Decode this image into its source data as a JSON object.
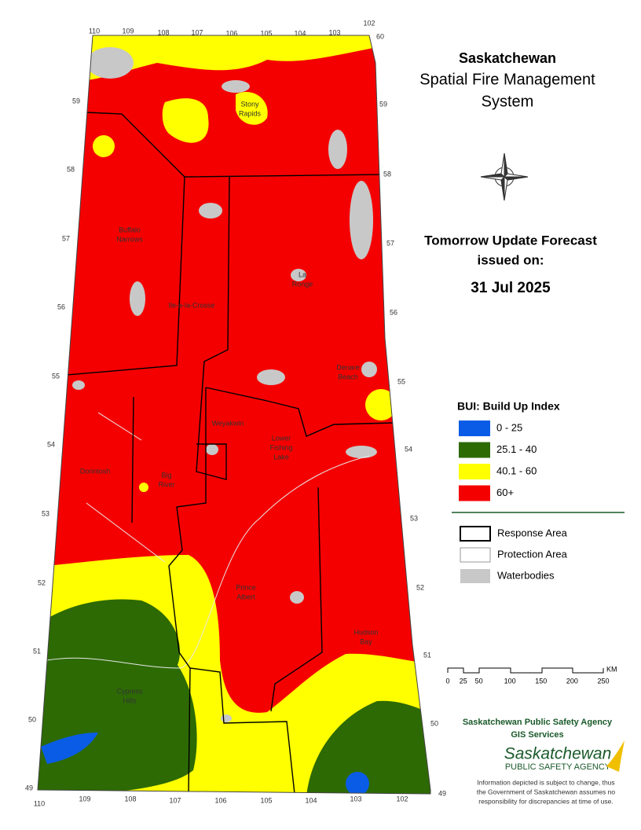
{
  "title": {
    "lines": [
      "Saskatchewan",
      "Spatial Fire Management",
      "System"
    ]
  },
  "forecast": {
    "lines": [
      "Tomorrow Update Forecast",
      "issued on:",
      "31 Jul 2025"
    ]
  },
  "legend": {
    "title": "BUI: Build Up Index",
    "items": [
      {
        "label": "0 - 25",
        "color": "#0a5ce6"
      },
      {
        "label": "25.1 - 40",
        "color": "#2d6a04"
      },
      {
        "label": "40.1 - 60",
        "color": "#ffff00"
      },
      {
        "label": "60+",
        "color": "#f50000"
      }
    ]
  },
  "boundaries": [
    "Response Area",
    "Protection Area",
    "Waterbodies"
  ],
  "scale": {
    "labels": [
      0,
      25,
      50,
      100,
      150,
      200,
      250
    ],
    "unit": "KM"
  },
  "places": [
    [
      "Stony",
      "Rapids"
    ],
    [
      "Buffalo",
      "Narrows"
    ],
    [
      "La",
      "Ronge"
    ],
    [
      "Ile-a-la-Crosse"
    ],
    [
      "Denare",
      "Beach"
    ],
    [
      "Weyakwin"
    ],
    [
      "Lower",
      "Fishing",
      "Lake"
    ],
    [
      "Dorintosh"
    ],
    [
      "Big",
      "River"
    ],
    [
      "Prince",
      "Albert"
    ],
    [
      "Hudson",
      "Bay"
    ],
    [
      "Cypress",
      "Hills"
    ]
  ],
  "graticule": {
    "top": [
      110,
      109,
      108,
      107,
      106,
      105,
      104,
      103,
      102
    ],
    "right": [
      60,
      59,
      58,
      57,
      56,
      55,
      54,
      53,
      52,
      51,
      50,
      49
    ],
    "left": [
      59,
      58,
      57,
      56,
      55,
      54,
      53,
      52,
      51,
      50,
      49
    ],
    "bottom": [
      110,
      109,
      108,
      107,
      106,
      105,
      104,
      103,
      102
    ]
  },
  "agency": {
    "lines": [
      "Saskatchewan Public Safety Agency",
      "GIS  Services"
    ]
  },
  "logo": {
    "name": "Saskatchewan",
    "sub": "PUBLIC SAFETY AGENCY"
  },
  "disclaimer": [
    "Information depicted is subject to change, thus",
    "the Government of Saskatchewan assumes no",
    "responsibility for discrepancies at time of use."
  ]
}
